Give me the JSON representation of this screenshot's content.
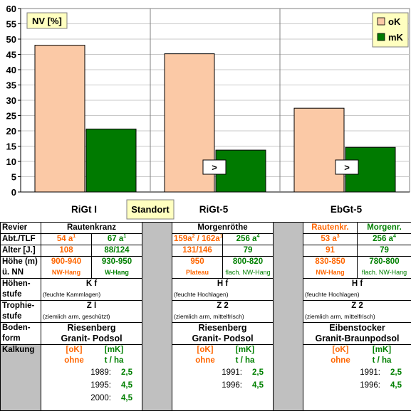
{
  "chart_data": {
    "type": "bar",
    "title": "NV [%]",
    "categories": [
      "RiGt I",
      "RiGt-5",
      "EbGt-5"
    ],
    "series": [
      {
        "name": "oK",
        "values": [
          48,
          45.2,
          27.4
        ],
        "color": "#fbc9a6"
      },
      {
        "name": "mK",
        "values": [
          20.6,
          13.7,
          14.6
        ],
        "color": "#007a00"
      }
    ],
    "ylim": [
      0,
      60
    ],
    "yticks": [
      0,
      5,
      10,
      15,
      20,
      25,
      30,
      35,
      40,
      45,
      50,
      55,
      60
    ],
    "grid": true,
    "legend": "top-right",
    "center_label": "Standort",
    "markers": [
      ">",
      ">"
    ]
  },
  "table": {
    "revier": {
      "label": "Revier",
      "c1": "Rautenkranz",
      "c2": "Morgenröthe",
      "c3a": "Rautenkr.",
      "c3b": "Morgenr."
    },
    "abt": {
      "label": "Abt./TLF",
      "c1a": "54 a",
      "c1a_sup": "1",
      "c1b": "67 a",
      "c1b_sup": "1",
      "c2a": "159a",
      "c2a_sup1": "2",
      "c2a_mid": " / 162a",
      "c2a_sup2": "1",
      "c2b": "256 a",
      "c2b_sup": "4",
      "c3a": "53 a",
      "c3a_sup": "3",
      "c3b": "256 a",
      "c3b_sup": "4"
    },
    "alter": {
      "label": "Alter [J.]",
      "c1a": "108",
      "c1b": "88/124",
      "c2a": "131/146",
      "c2b": "79",
      "c3a": "91",
      "c3b": "79"
    },
    "hoehe": {
      "label1": "Höhe (m)",
      "label2": "ü. NN",
      "c1a": "900-940",
      "c1a_sub": "NW-Hang",
      "c1b": "930-950",
      "c1b_sub": "W-Hang",
      "c2a": "950",
      "c2a_sub": "Plateau",
      "c2b": "800-820",
      "c2b_sub": "flach. NW-Hang",
      "c3a": "830-850",
      "c3a_sub": "NW-Hang",
      "c3b": "780-800",
      "c3b_sub": "flach. NW-Hang"
    },
    "hoehenstufe": {
      "label1": "Höhen-",
      "label2": "stufe",
      "c1": "K f",
      "c1_sub": "(feuchte Kammlagen)",
      "c2": "H f",
      "c2_sub": "(feuchte Hochlagen)",
      "c3": "H f",
      "c3_sub": "(feuchte Hochlagen)"
    },
    "trophie": {
      "label1": "Trophie-",
      "label2": "stufe",
      "c1": "Z l",
      "c1_sub": "(ziemlich arm, geschützt)",
      "c2": "Z 2",
      "c2_sub": "(ziemlich arm, mittelfrisch)",
      "c3": "Z 2",
      "c3_sub": "(ziemlich arm, mittelfrisch)"
    },
    "boden": {
      "label1": "Boden-",
      "label2": "form",
      "c1a": "Riesenberg",
      "c1b": "Granit- Podsol",
      "c2a": "Riesenberg",
      "c2b": "Granit- Podsol",
      "c3a": "Eibenstocker",
      "c3b": "Granit-Braunpodsol"
    },
    "kalkung": {
      "label": "Kalkung",
      "ok": "[oK]",
      "ohne": "ohne",
      "mk": "[mK]",
      "tha": "t / ha",
      "c1": [
        {
          "year": "1989:",
          "val": "2,5"
        },
        {
          "year": "1995:",
          "val": "4,5"
        },
        {
          "year": "2000:",
          "val": "4,5"
        }
      ],
      "c2": [
        {
          "year": "1991:",
          "val": "2,5"
        },
        {
          "year": "1996:",
          "val": "4,5"
        }
      ],
      "c3": [
        {
          "year": "1991:",
          "val": "2,5"
        },
        {
          "year": "1996:",
          "val": "4,5"
        }
      ]
    }
  }
}
